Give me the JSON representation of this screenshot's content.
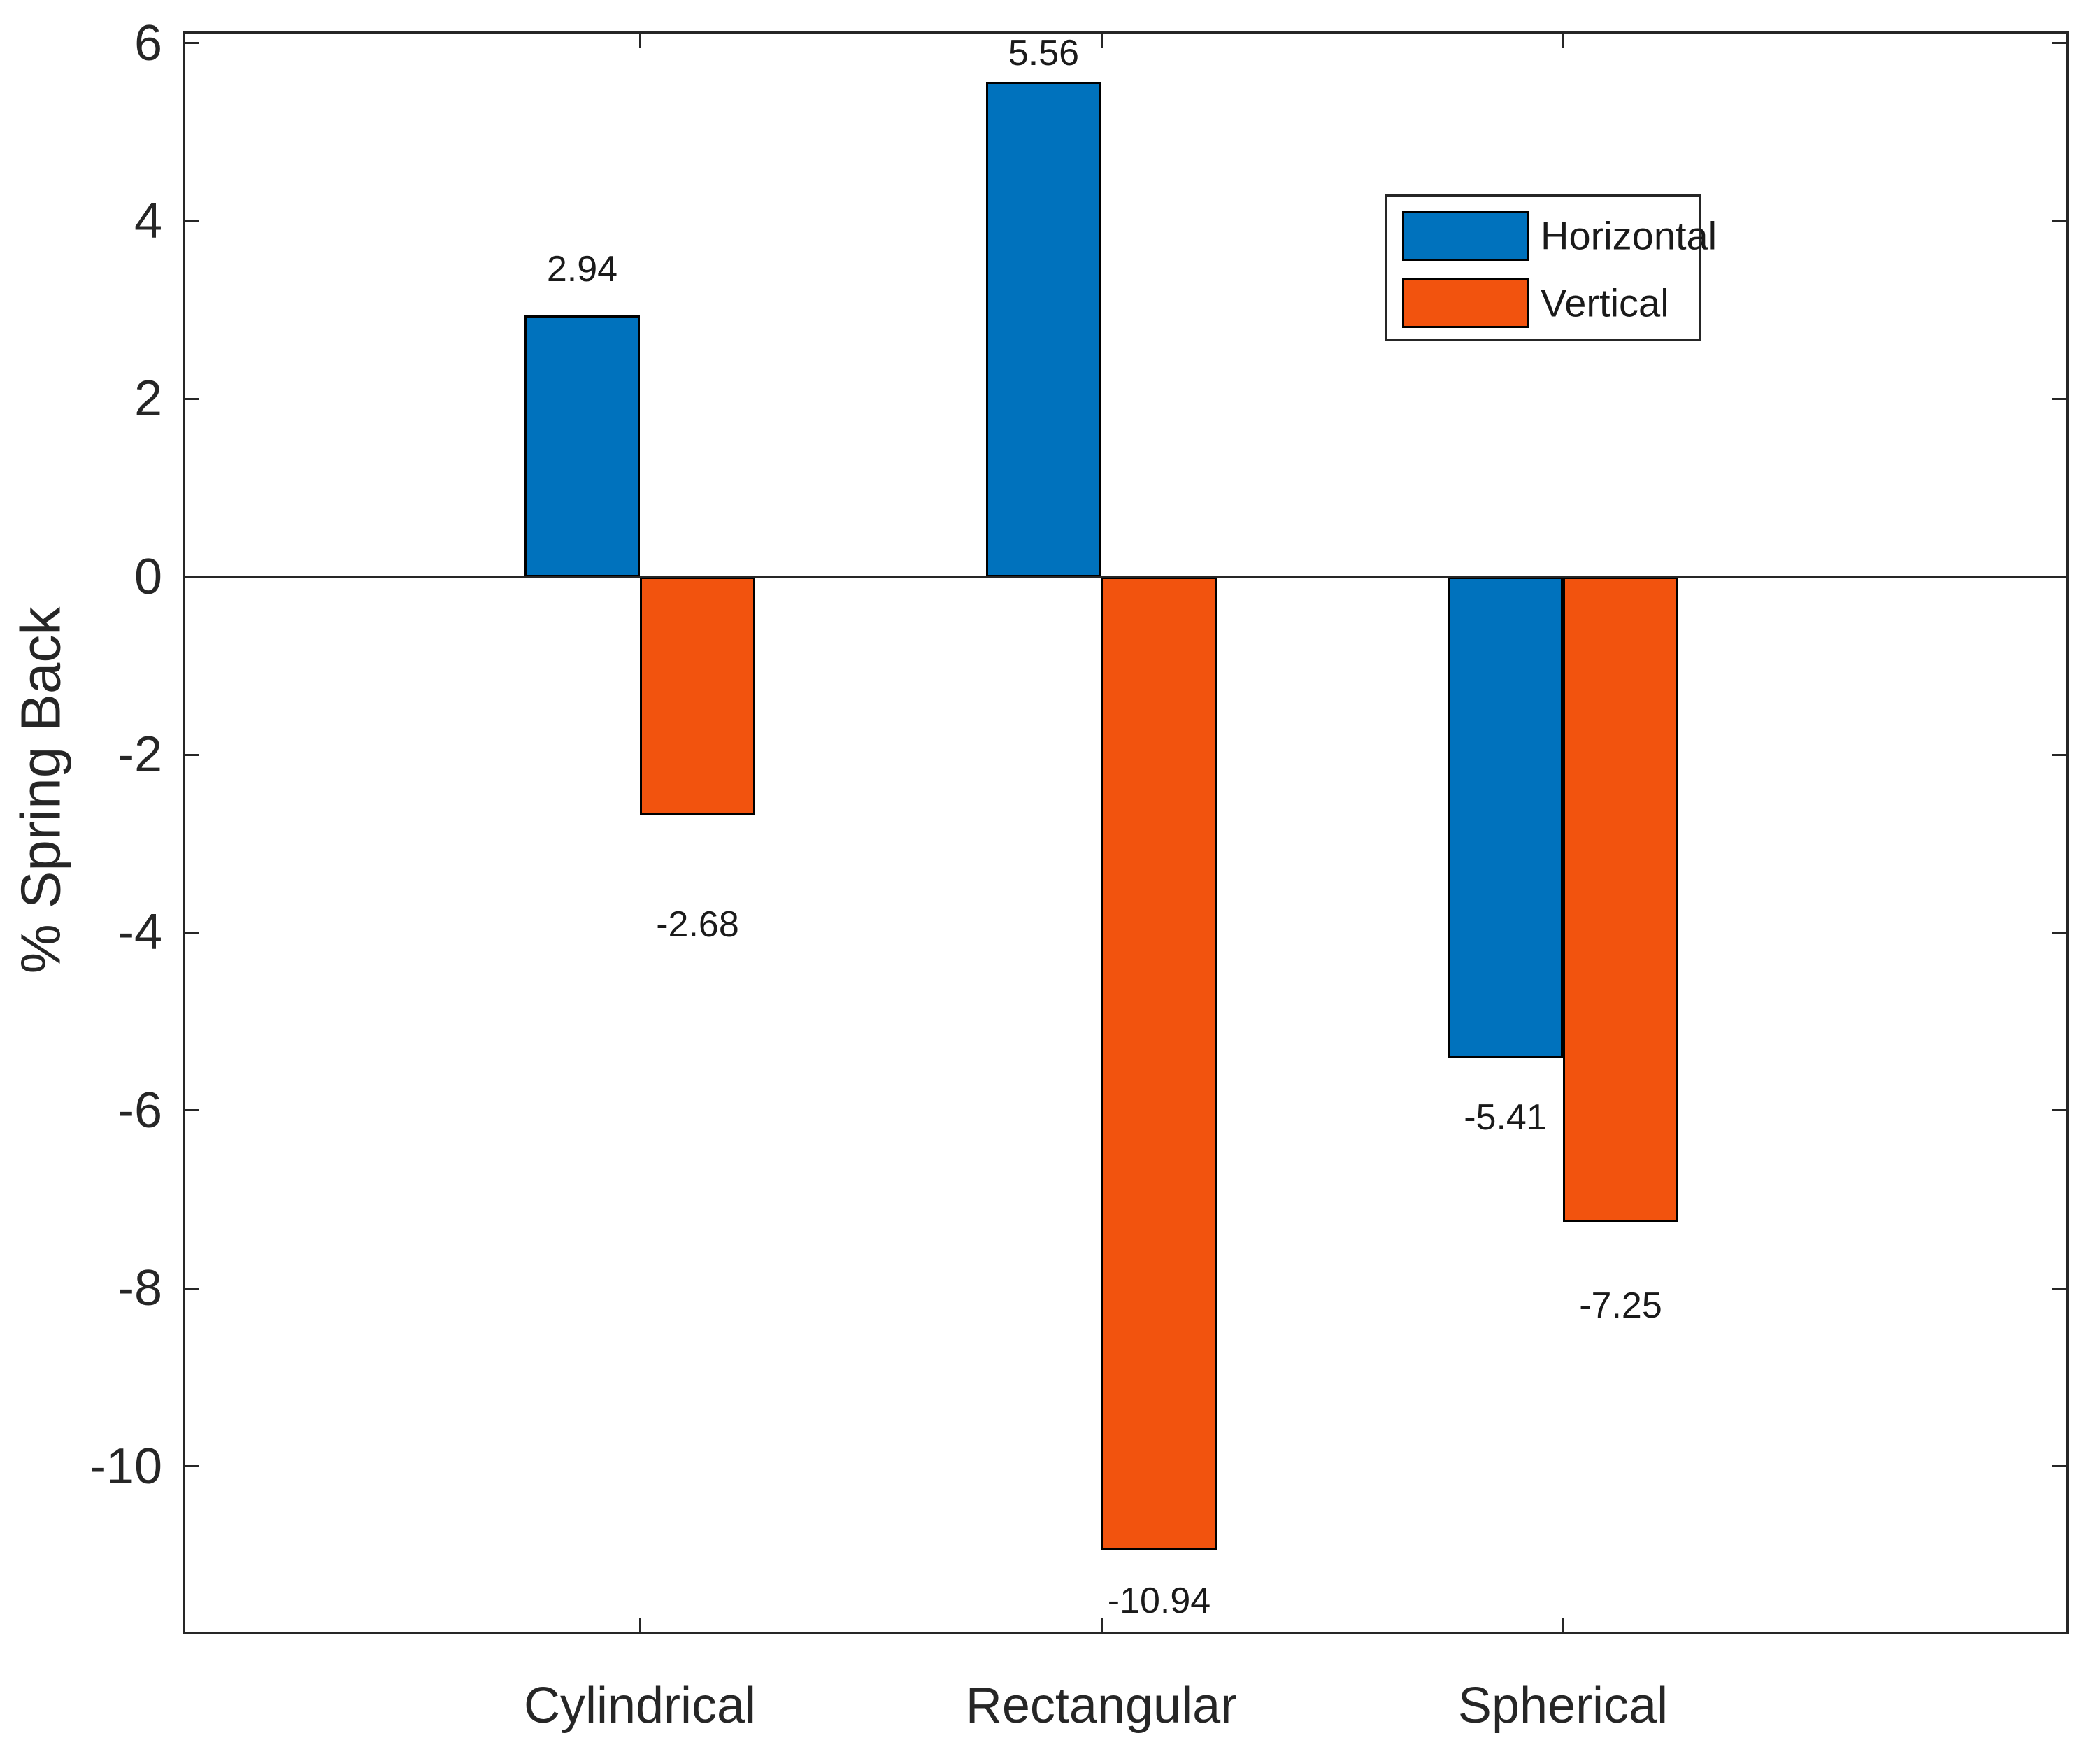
{
  "colors": {
    "background": "#FFFFFF",
    "axis": "#262626",
    "text": "#1A1A1A",
    "bar_edge": "#000000",
    "horizontal_series": "#0072BD",
    "vertical_series": "#F2530E"
  },
  "chart_data": {
    "type": "bar",
    "categories": [
      "Cylindrical",
      "Rectangular",
      "Spherical"
    ],
    "series": [
      {
        "name": "Horizontal",
        "color": "#0072BD",
        "values": [
          2.94,
          5.56,
          -5.41
        ],
        "value_labels": [
          "2.94",
          "5.56",
          "-5.41"
        ],
        "label_dy": [
          -66,
          -41,
          85
        ]
      },
      {
        "name": "Vertical",
        "color": "#F2530E",
        "values": [
          -2.68,
          -10.94,
          -7.25
        ],
        "value_labels": [
          "-2.68",
          "-10.94",
          "-7.25"
        ],
        "label_dy": [
          156,
          73,
          120
        ]
      }
    ],
    "title": "",
    "xlabel": "",
    "ylabel": "% Spring Back",
    "y_ticks": [
      6,
      4,
      2,
      0,
      -2,
      -4,
      -6,
      -8,
      -10
    ],
    "ylim": [
      -11.89,
      6.13
    ],
    "grid": false,
    "zero_line": true,
    "legend_position": "upper right",
    "legend_entries": [
      "Horizontal",
      "Vertical"
    ]
  }
}
